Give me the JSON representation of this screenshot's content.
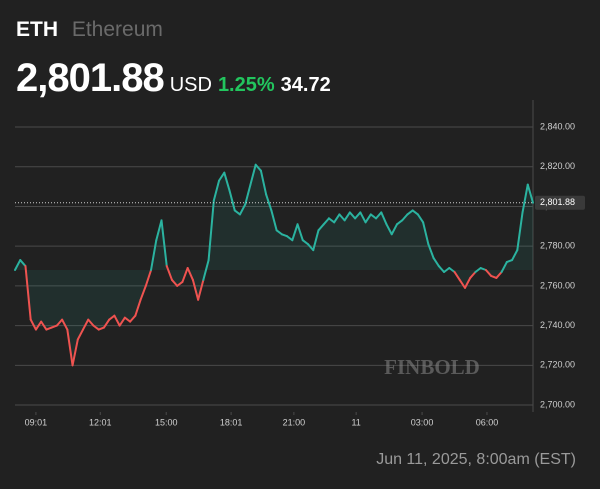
{
  "symbol": "ETH",
  "name": "Ethereum",
  "currency": "USD",
  "change_percent": {
    "value": 1.25,
    "label": "1.25%"
  },
  "change": 34.72,
  "watermark": "FINBOLD",
  "timestamp": "Jun 11, 2025, 8:00am (EST)",
  "chart_data": {
    "type": "line",
    "up_color": "#2bb3a0",
    "down_color": "#ef5350",
    "last_price": {
      "value": 2801.88,
      "label": "2,801.88"
    },
    "values": [
      2768,
      2773,
      2770,
      2743,
      2738,
      2742,
      2738,
      2739,
      2740,
      2743,
      2738,
      2720,
      2733,
      2738,
      2743,
      2740,
      2738,
      2739,
      2743,
      2745,
      2740,
      2744,
      2742,
      2745,
      2753,
      2760,
      2768,
      2783,
      2793,
      2770,
      2763,
      2760,
      2762,
      2769,
      2763,
      2753,
      2763,
      2773,
      2803,
      2813,
      2817,
      2808,
      2798,
      2796,
      2801,
      2811,
      2821,
      2818,
      2806,
      2798,
      2788,
      2786,
      2785,
      2783,
      2791,
      2783,
      2781,
      2778,
      2788,
      2791,
      2794,
      2792,
      2796,
      2793,
      2797,
      2794,
      2797,
      2792,
      2796,
      2794,
      2797,
      2791,
      2786,
      2791,
      2793,
      2796,
      2798,
      2796,
      2792,
      2781,
      2774,
      2770,
      2767,
      2769,
      2767,
      2763,
      2759,
      2764,
      2767,
      2769,
      2768,
      2765,
      2764,
      2767,
      2772,
      2773,
      2778,
      2797,
      2811,
      2801.88
    ],
    "xlim": [
      0,
      99
    ],
    "xticks": [
      {
        "value": 4,
        "label": "09:01"
      },
      {
        "value": 16.3,
        "label": "12:01"
      },
      {
        "value": 28.9,
        "label": "15:00"
      },
      {
        "value": 41.3,
        "label": "18:01"
      },
      {
        "value": 53.3,
        "label": "21:00"
      },
      {
        "value": 65.2,
        "label": "11"
      },
      {
        "value": 77.8,
        "label": "03:00"
      },
      {
        "value": 90.2,
        "label": "06:00"
      }
    ],
    "ylim": [
      2696.5,
      2853.6
    ],
    "yticks": [
      {
        "value": 2700,
        "label": "2,700.00"
      },
      {
        "value": 2720,
        "label": "2,720.00"
      },
      {
        "value": 2740,
        "label": "2,740.00"
      },
      {
        "value": 2760,
        "label": "2,760.00"
      },
      {
        "value": 2780,
        "label": "2,780.00"
      },
      {
        "value": 2800,
        "label": "2,800.00"
      },
      {
        "value": 2820,
        "label": "2,820.00"
      },
      {
        "value": 2840,
        "label": "2,840.00"
      }
    ],
    "grid": true
  }
}
